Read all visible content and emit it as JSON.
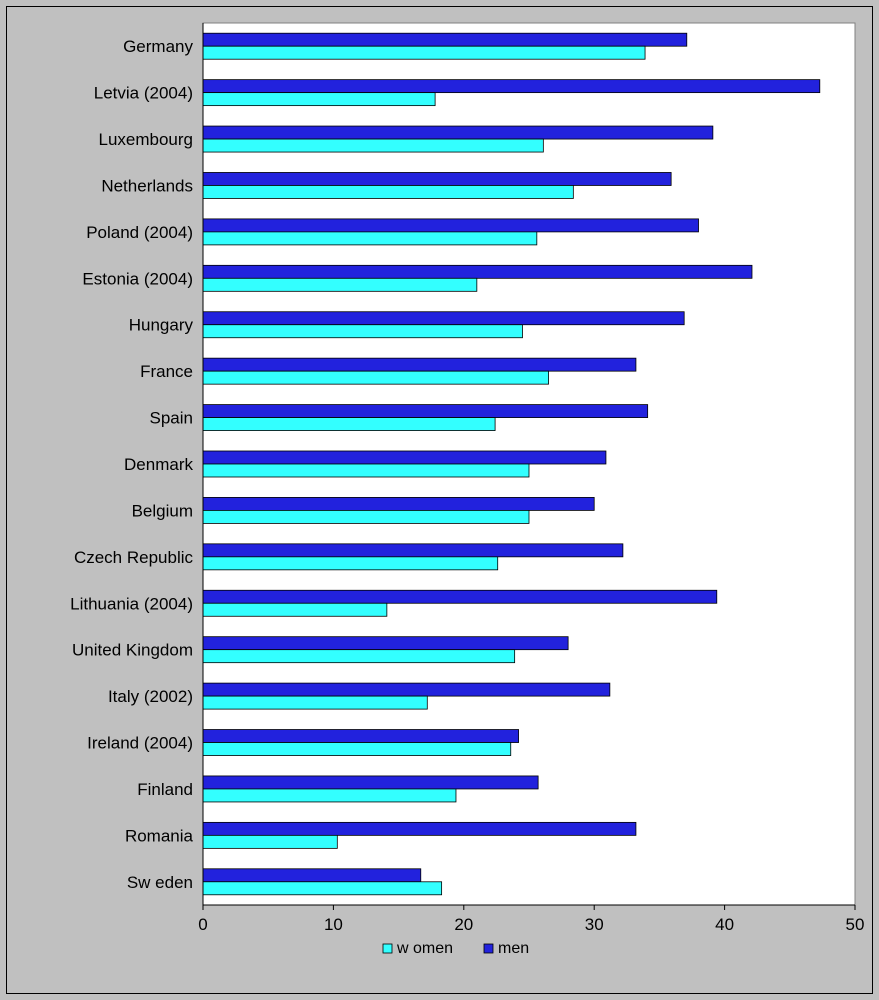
{
  "chart_data": {
    "type": "bar",
    "orientation": "horizontal",
    "categories": [
      "Germany",
      "Letvia (2004)",
      "Luxembourg",
      "Netherlands",
      "Poland (2004)",
      "Estonia (2004)",
      "Hungary",
      "France",
      "Spain",
      "Denmark",
      "Belgium",
      "Czech Republic",
      "Lithuania (2004)",
      "United Kingdom",
      "Italy (2002)",
      "Ireland (2004)",
      "Finland",
      "Romania",
      "Sw eden"
    ],
    "series": [
      {
        "name": "w omen",
        "color": "#33ffff",
        "values": [
          33.9,
          17.8,
          26.1,
          28.4,
          25.6,
          21.0,
          24.5,
          26.5,
          22.4,
          25.0,
          25.0,
          22.6,
          14.1,
          23.9,
          17.2,
          23.6,
          19.4,
          10.3,
          18.3
        ]
      },
      {
        "name": "men",
        "color": "#2222dd",
        "values": [
          37.1,
          47.3,
          39.1,
          35.9,
          38.0,
          42.1,
          36.9,
          33.2,
          34.1,
          30.9,
          30.0,
          32.2,
          39.4,
          28.0,
          31.2,
          24.2,
          25.7,
          33.2,
          16.7
        ]
      }
    ],
    "xlim": [
      0,
      50
    ],
    "xticks": [
      "0",
      "10",
      "20",
      "30",
      "40",
      "50"
    ],
    "grid": false,
    "legend": "bottom"
  }
}
